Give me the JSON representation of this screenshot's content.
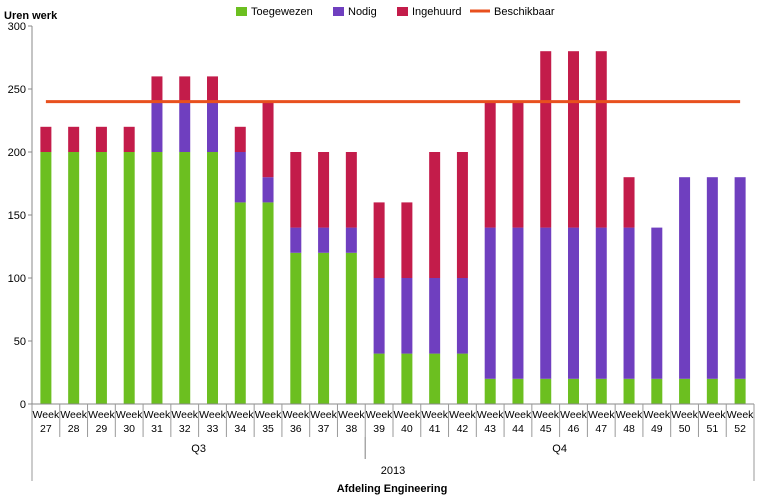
{
  "chart_data": {
    "type": "bar",
    "stacked": true,
    "ylabel": "Uren werk",
    "xlabel": "Afdeling Engineering",
    "ylim": [
      0,
      300
    ],
    "yticks": [
      0,
      50,
      100,
      150,
      200,
      250,
      300
    ],
    "grid": false,
    "legend_position": "top",
    "categories": [
      "Week 27",
      "Week 28",
      "Week 29",
      "Week 30",
      "Week 31",
      "Week 32",
      "Week 33",
      "Week 34",
      "Week 35",
      "Week 36",
      "Week 37",
      "Week 38",
      "Week 39",
      "Week 40",
      "Week 41",
      "Week 42",
      "Week 43",
      "Week 44",
      "Week 45",
      "Week 46",
      "Week 47",
      "Week 48",
      "Week 49",
      "Week 50",
      "Week 51",
      "Week 52"
    ],
    "category_lines": [
      [
        "Week",
        "Week",
        "Week",
        "Week",
        "Week",
        "Week",
        "Week",
        "Week",
        "Week",
        "Week",
        "Week",
        "Week",
        "Week",
        "Week",
        "Week",
        "Week",
        "Week",
        "Week",
        "Week",
        "Week",
        "Week",
        "Week",
        "Week",
        "Week",
        "Week",
        "Week"
      ],
      [
        "27",
        "28",
        "29",
        "30",
        "31",
        "32",
        "33",
        "34",
        "35",
        "36",
        "37",
        "38",
        "39",
        "40",
        "41",
        "42",
        "43",
        "44",
        "45",
        "46",
        "47",
        "48",
        "49",
        "50",
        "51",
        "52"
      ]
    ],
    "groups": [
      {
        "label": "Q3",
        "start": 0,
        "end": 11
      },
      {
        "label": "Q4",
        "start": 12,
        "end": 25
      }
    ],
    "super_group": {
      "label": "2013",
      "start": 0,
      "end": 25
    },
    "series": [
      {
        "name": "Toegewezen",
        "color": "#6cbf20",
        "values": [
          200,
          200,
          200,
          200,
          200,
          200,
          200,
          160,
          160,
          120,
          120,
          120,
          40,
          40,
          40,
          40,
          20,
          20,
          20,
          20,
          20,
          20,
          20,
          20,
          20,
          20
        ]
      },
      {
        "name": "Nodig",
        "color": "#6f3fbf",
        "values": [
          0,
          0,
          0,
          0,
          40,
          40,
          40,
          40,
          20,
          20,
          20,
          20,
          60,
          60,
          60,
          60,
          120,
          120,
          120,
          120,
          120,
          120,
          120,
          160,
          160,
          160
        ]
      },
      {
        "name": "Ingehuurd",
        "color": "#c31c4a",
        "values": [
          20,
          20,
          20,
          20,
          20,
          20,
          20,
          20,
          60,
          60,
          60,
          60,
          60,
          60,
          100,
          100,
          100,
          100,
          140,
          140,
          140,
          40,
          0,
          0,
          0,
          0
        ]
      }
    ],
    "line": {
      "name": "Beschikbaar",
      "color": "#e8501e",
      "value": 240
    }
  }
}
